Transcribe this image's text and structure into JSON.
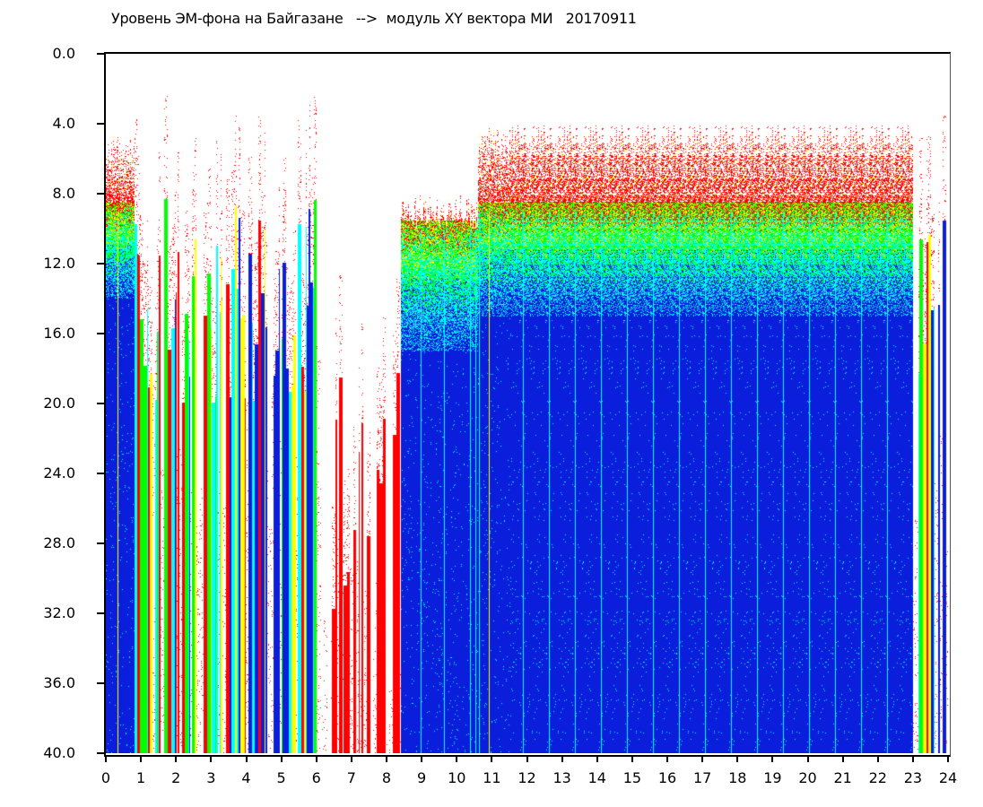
{
  "chart_data": {
    "type": "heatmap",
    "title": "Уровень ЭМ-фона на Байгазане   -->  модуль XY вектора МИ   20170911",
    "xlabel": "",
    "ylabel": "",
    "xlim": [
      0,
      24
    ],
    "ylim": [
      0.0,
      40.0
    ],
    "y_inverted": true,
    "x_ticks": [
      "0",
      "1",
      "2",
      "3",
      "4",
      "5",
      "6",
      "7",
      "8",
      "9",
      "10",
      "11",
      "12",
      "13",
      "14",
      "15",
      "16",
      "17",
      "18",
      "19",
      "20",
      "21",
      "22",
      "23",
      "24"
    ],
    "y_ticks": [
      "0.0",
      "4.0",
      "8.0",
      "12.0",
      "16.0",
      "20.0",
      "24.0",
      "28.0",
      "32.0",
      "36.0",
      "40.0"
    ],
    "colormap": [
      "#ff0000",
      "#ffff00",
      "#00ff00",
      "#00ffff",
      "#0a1edc"
    ],
    "grid": false,
    "segments": [
      {
        "hours": [
          0,
          0.8
        ],
        "pattern": "dense",
        "top_level": 4.5,
        "green_from": 9,
        "blue_from": 14
      },
      {
        "hours": [
          0.8,
          6.1
        ],
        "pattern": "stripes",
        "top_level": 8,
        "green_from": 10,
        "blue_from": 14
      },
      {
        "hours": [
          6.1,
          8.4
        ],
        "pattern": "stripes-sparse",
        "top_level": 18,
        "green_from": 30,
        "blue_from": 40
      },
      {
        "hours": [
          8.4,
          10.6
        ],
        "pattern": "dense",
        "top_level": 8,
        "green_from": 10,
        "blue_from": 17
      },
      {
        "hours": [
          10.6,
          22.0
        ],
        "pattern": "dense",
        "top_level": 4,
        "green_from": 9,
        "blue_from": 15
      },
      {
        "hours": [
          22.0,
          23.0
        ],
        "pattern": "dense",
        "top_level": 4,
        "green_from": 9,
        "blue_from": 15
      },
      {
        "hours": [
          23.0,
          24.0
        ],
        "pattern": "stripes",
        "top_level": 9,
        "green_from": 12,
        "blue_from": 16
      }
    ]
  }
}
